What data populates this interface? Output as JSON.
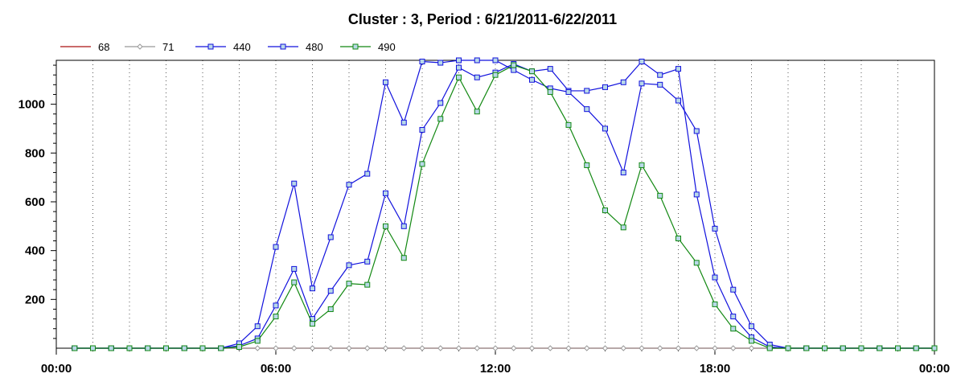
{
  "chart_data": {
    "type": "line",
    "title": "Cluster : 3, Period : 6/21/2011-6/22/2011",
    "xlabel": "",
    "ylabel": "",
    "x_range_hours": [
      0,
      24
    ],
    "ylim": [
      0,
      1180
    ],
    "grid": {
      "vertical": true,
      "horizontal": false,
      "style": "dotted"
    },
    "legend_position": "top-left",
    "x_tick_labels": [
      "00:00",
      "06:00",
      "12:00",
      "18:00",
      "00:00"
    ],
    "x_tick_hours": [
      0,
      6,
      12,
      18,
      24
    ],
    "y_tick_labels": [
      "200",
      "400",
      "600",
      "800",
      "1000"
    ],
    "y_ticks": [
      200,
      400,
      600,
      800,
      1000
    ],
    "x": [
      0.5,
      1,
      1.5,
      2,
      2.5,
      3,
      3.5,
      4,
      4.5,
      5,
      5.5,
      6,
      6.5,
      7,
      7.5,
      8,
      8.5,
      9,
      9.5,
      10,
      10.5,
      11,
      11.5,
      12,
      12.5,
      13,
      13.5,
      14,
      14.5,
      15,
      15.5,
      16,
      16.5,
      17,
      17.5,
      18,
      18.5,
      19,
      19.5,
      20,
      20.5,
      21,
      21.5,
      22,
      22.5,
      23,
      23.5,
      24
    ],
    "series": [
      {
        "name": "68",
        "color": "#aa1111",
        "marker": "none",
        "values": [
          0,
          0,
          0,
          0,
          0,
          0,
          0,
          0,
          0,
          0,
          0,
          0,
          0,
          0,
          0,
          0,
          0,
          0,
          0,
          0,
          0,
          0,
          0,
          0,
          0,
          0,
          0,
          0,
          0,
          0,
          0,
          0,
          0,
          0,
          0,
          0,
          0,
          0,
          0,
          0,
          0,
          0,
          0,
          0,
          0,
          0,
          0,
          0
        ]
      },
      {
        "name": "71",
        "color": "#999999",
        "marker": "diamond",
        "values": [
          0,
          0,
          0,
          0,
          0,
          0,
          0,
          0,
          0,
          0,
          0,
          0,
          0,
          0,
          0,
          0,
          0,
          0,
          0,
          0,
          0,
          0,
          0,
          0,
          0,
          0,
          0,
          0,
          0,
          0,
          0,
          0,
          0,
          0,
          0,
          0,
          0,
          0,
          0,
          0,
          0,
          0,
          0,
          0,
          0,
          0,
          0,
          0
        ]
      },
      {
        "name": "440",
        "color": "#1111dd",
        "marker": "square",
        "values": [
          0,
          0,
          0,
          0,
          0,
          0,
          0,
          0,
          0,
          10,
          40,
          175,
          325,
          120,
          235,
          340,
          355,
          635,
          500,
          895,
          1005,
          1150,
          1110,
          1130,
          1165,
          1135,
          1145,
          1055,
          1055,
          1070,
          1090,
          1175,
          1120,
          1145,
          630,
          290,
          130,
          45,
          5,
          0,
          0,
          0,
          0,
          0,
          0,
          0,
          0,
          0
        ]
      },
      {
        "name": "480",
        "color": "#1111dd",
        "marker": "square",
        "values": [
          0,
          0,
          0,
          0,
          0,
          0,
          0,
          0,
          0,
          20,
          90,
          415,
          675,
          245,
          455,
          670,
          715,
          1090,
          925,
          1175,
          1170,
          1180,
          1180,
          1180,
          1140,
          1100,
          1065,
          1050,
          980,
          900,
          720,
          1085,
          1080,
          1015,
          890,
          490,
          240,
          90,
          15,
          0,
          0,
          0,
          0,
          0,
          0,
          0,
          0,
          0
        ]
      },
      {
        "name": "490",
        "color": "#118811",
        "marker": "square",
        "values": [
          0,
          0,
          0,
          0,
          0,
          0,
          0,
          0,
          0,
          5,
          30,
          130,
          270,
          100,
          160,
          265,
          260,
          500,
          370,
          755,
          940,
          1110,
          970,
          1120,
          1160,
          1135,
          1050,
          915,
          750,
          565,
          495,
          750,
          625,
          450,
          350,
          180,
          80,
          30,
          0,
          0,
          0,
          0,
          0,
          0,
          0,
          0,
          0,
          0
        ]
      }
    ]
  }
}
